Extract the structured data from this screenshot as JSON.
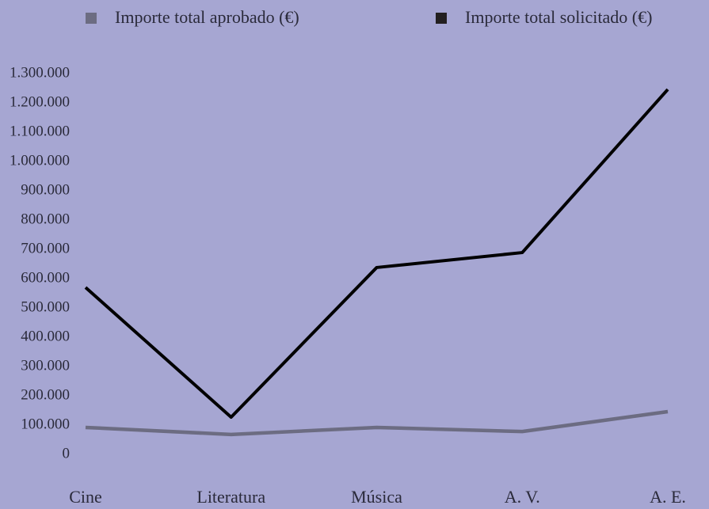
{
  "chart_data": {
    "type": "line",
    "categories": [
      "Cine",
      "Literatura",
      "Música",
      "A. V.",
      "A. E."
    ],
    "series": [
      {
        "name": "Importe total aprobado (€)",
        "color": "#6c6c82",
        "values": [
          92000,
          68000,
          92000,
          78000,
          146000
        ]
      },
      {
        "name": "Importe total solicitado (€)",
        "color": "#000000",
        "values": [
          570000,
          127000,
          638000,
          689000,
          1246000
        ]
      }
    ],
    "ylim": [
      0,
      1300000
    ],
    "yticks": [
      0,
      {
        "value": 100000,
        "label": "100.000"
      },
      {
        "value": 200000,
        "label": "200.000"
      },
      {
        "value": 300000,
        "label": "300.000"
      },
      {
        "value": 400000,
        "label": "400.000"
      },
      {
        "value": 500000,
        "label": "500.000"
      },
      {
        "value": 600000,
        "label": "600.000"
      },
      {
        "value": 700000,
        "label": "700.000"
      },
      {
        "value": 800000,
        "label": "800.000"
      },
      {
        "value": 900000,
        "label": "900.000"
      },
      {
        "value": 1000000,
        "label": "1.000.000"
      },
      {
        "value": 1100000,
        "label": "1.100.000"
      },
      {
        "value": 1200000,
        "label": "1.200.000"
      },
      {
        "value": 1300000,
        "label": "1.300.000"
      }
    ],
    "grid": false,
    "legend": "top"
  }
}
